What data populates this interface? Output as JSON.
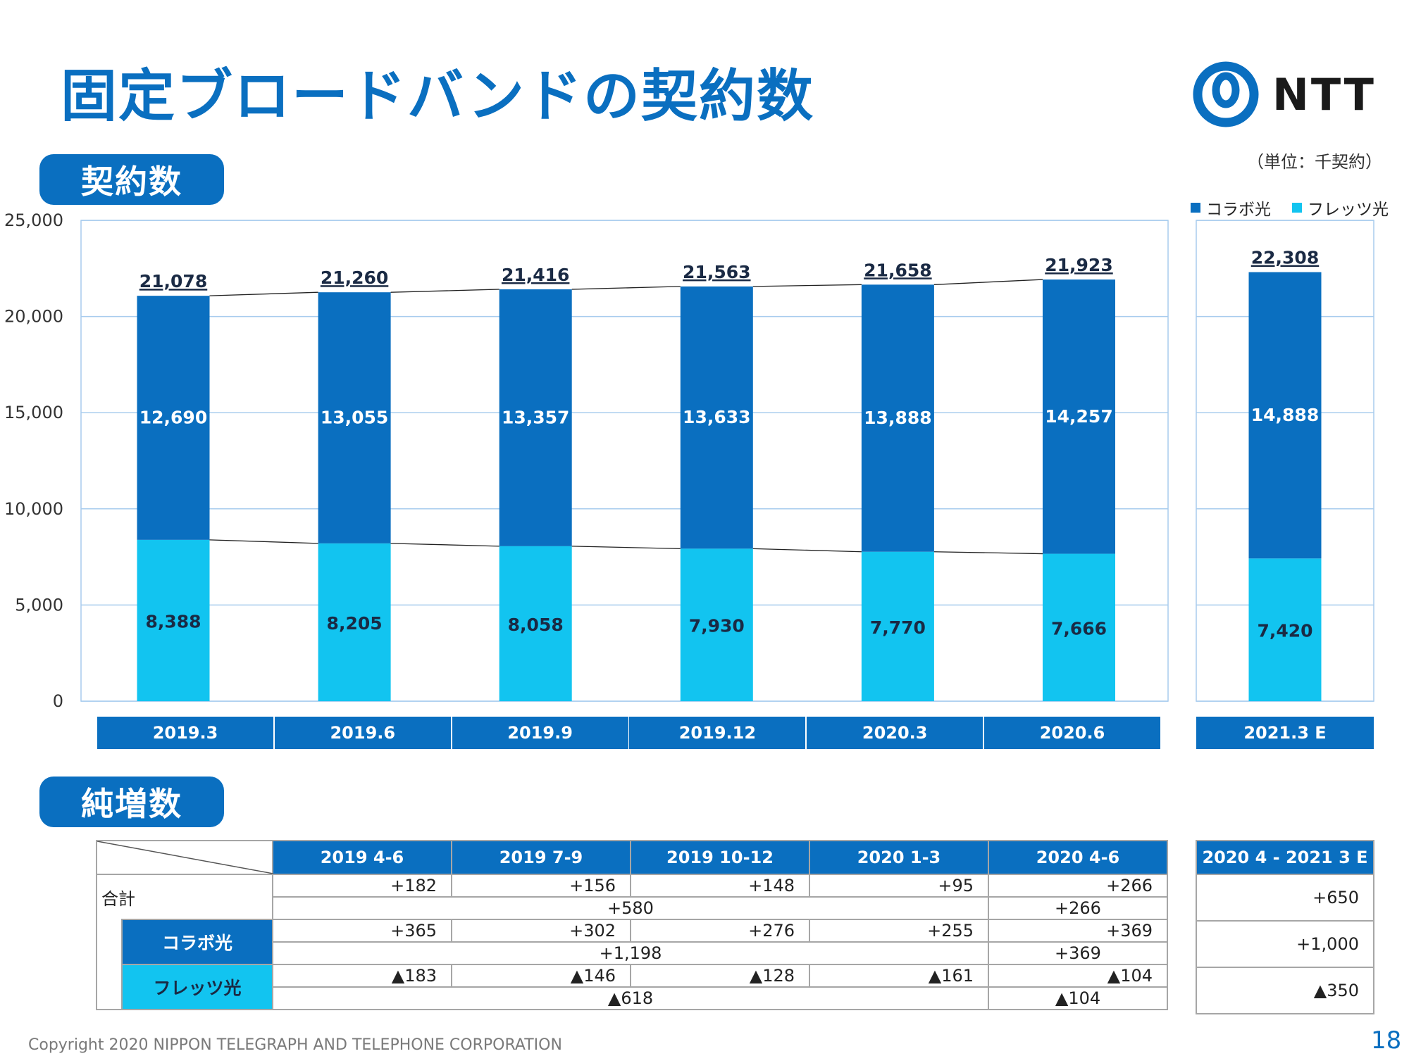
{
  "title": "固定ブロードバンドの契約数",
  "logo_text": "NTT",
  "section1_label": "契約数",
  "section2_label": "純増数",
  "unit_label": "（単位：千契約）",
  "legend": [
    "コラボ光",
    "フレッツ光"
  ],
  "colors": {
    "collabo": "#0a6fc0",
    "flets": "#12c4f0",
    "accent": "#0a6fc0"
  },
  "chart_data": {
    "type": "bar",
    "stacked": true,
    "categories": [
      "2019.3",
      "2019.6",
      "2019.9",
      "2019.12",
      "2020.3",
      "2020.6"
    ],
    "forecast_category": "2021.3 E",
    "ylim": [
      0,
      25000
    ],
    "yticks": [
      "0",
      "5,000",
      "10,000",
      "15,000",
      "20,000",
      "25,000"
    ],
    "series": [
      {
        "name": "フレッツ光",
        "values": [
          8388,
          8205,
          8058,
          7930,
          7770,
          7666
        ],
        "forecast": 7420,
        "labels": [
          "8,388",
          "8,205",
          "8,058",
          "7,930",
          "7,770",
          "7,666"
        ],
        "forecast_label": "7,420"
      },
      {
        "name": "コラボ光",
        "values": [
          12690,
          13055,
          13357,
          13633,
          13888,
          14257
        ],
        "forecast": 14888,
        "labels": [
          "12,690",
          "13,055",
          "13,357",
          "13,633",
          "13,888",
          "14,257"
        ],
        "forecast_label": "14,888"
      }
    ],
    "totals": [
      21078,
      21260,
      21416,
      21563,
      21658,
      21923
    ],
    "total_labels": [
      "21,078",
      "21,260",
      "21,416",
      "21,563",
      "21,658",
      "21,923"
    ],
    "forecast_total": 22308,
    "forecast_total_label": "22,308",
    "grid": true
  },
  "net_table": {
    "headers": [
      "2019 4-6",
      "2019 7-9",
      "2019 10-12",
      "2020 1-3",
      "2020 4-6"
    ],
    "forecast_header": "2020 4 - 2021 3 E",
    "total_label": "合計",
    "collabo_label": "コラボ光",
    "flets_label": "フレッツ光",
    "total_quarters": [
      "+182",
      "+156",
      "+148",
      "+95",
      "+266"
    ],
    "total_fy": [
      "+580",
      "+266"
    ],
    "total_forecast": "+650",
    "collabo_quarters": [
      "+365",
      "+302",
      "+276",
      "+255",
      "+369"
    ],
    "collabo_fy": [
      "+1,198",
      "+369"
    ],
    "collabo_forecast": "+1,000",
    "flets_quarters": [
      "▲183",
      "▲146",
      "▲128",
      "▲161",
      "▲104"
    ],
    "flets_fy": [
      "▲618",
      "▲104"
    ],
    "flets_forecast": "▲350"
  },
  "footer": "Copyright 2020 NIPPON TELEGRAPH AND TELEPHONE CORPORATION",
  "page_number": "18"
}
